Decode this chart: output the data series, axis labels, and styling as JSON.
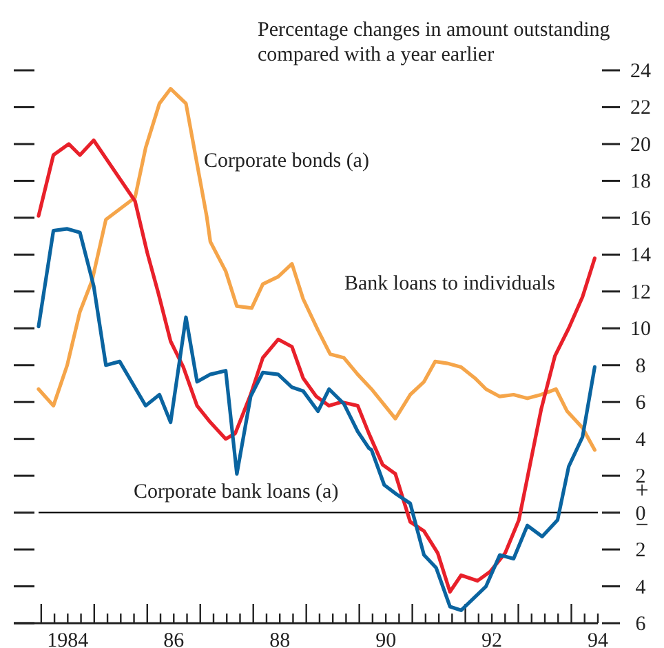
{
  "chart_data": {
    "type": "line",
    "subtitle": "Percentage changes in amount outstanding compared with a year earlier",
    "xlim": [
      1983.45,
      1994.0
    ],
    "ylim": [
      -6,
      24
    ],
    "xticks": [
      {
        "value": 1983.5,
        "label": null
      },
      {
        "value": 1983.75,
        "label": null
      },
      {
        "value": 1984,
        "label": "1984"
      },
      {
        "value": 1984.25,
        "label": null
      },
      {
        "value": 1984.5,
        "label": null
      },
      {
        "value": 1984.75,
        "label": null
      },
      {
        "value": 1985,
        "label": null
      },
      {
        "value": 1985.25,
        "label": null
      },
      {
        "value": 1985.5,
        "label": null
      },
      {
        "value": 1985.75,
        "label": null
      },
      {
        "value": 1986,
        "label": "86"
      },
      {
        "value": 1986.25,
        "label": null
      },
      {
        "value": 1986.5,
        "label": null
      },
      {
        "value": 1986.75,
        "label": null
      },
      {
        "value": 1987,
        "label": null
      },
      {
        "value": 1987.25,
        "label": null
      },
      {
        "value": 1987.5,
        "label": null
      },
      {
        "value": 1987.75,
        "label": null
      },
      {
        "value": 1988,
        "label": "88"
      },
      {
        "value": 1988.25,
        "label": null
      },
      {
        "value": 1988.5,
        "label": null
      },
      {
        "value": 1988.75,
        "label": null
      },
      {
        "value": 1989,
        "label": null
      },
      {
        "value": 1989.25,
        "label": null
      },
      {
        "value": 1989.5,
        "label": null
      },
      {
        "value": 1989.75,
        "label": null
      },
      {
        "value": 1990,
        "label": "90"
      },
      {
        "value": 1990.25,
        "label": null
      },
      {
        "value": 1990.5,
        "label": null
      },
      {
        "value": 1990.75,
        "label": null
      },
      {
        "value": 1991,
        "label": null
      },
      {
        "value": 1991.25,
        "label": null
      },
      {
        "value": 1991.5,
        "label": null
      },
      {
        "value": 1991.75,
        "label": null
      },
      {
        "value": 1992,
        "label": "92"
      },
      {
        "value": 1992.25,
        "label": null
      },
      {
        "value": 1992.5,
        "label": null
      },
      {
        "value": 1992.75,
        "label": null
      },
      {
        "value": 1993,
        "label": null
      },
      {
        "value": 1993.25,
        "label": null
      },
      {
        "value": 1993.5,
        "label": null
      },
      {
        "value": 1993.75,
        "label": null
      },
      {
        "value": 1994,
        "label": "94"
      }
    ],
    "yticks": [
      {
        "value": -6,
        "label": "6"
      },
      {
        "value": -4,
        "label": "4"
      },
      {
        "value": -2,
        "label": "2"
      },
      0,
      2,
      4,
      6,
      8,
      10,
      12,
      14,
      16,
      18,
      20,
      22,
      24
    ],
    "ref_lines": [
      {
        "axis": "y",
        "value": 0,
        "color": "#000000"
      }
    ],
    "annotations": [
      "+",
      "−"
    ],
    "grid": false,
    "series": [
      {
        "name": "Corporate bonds (a)",
        "color": "#f5a54a",
        "x": [
          1983.45,
          1983.73,
          1983.99,
          1984.23,
          1984.46,
          1984.72,
          1985.27,
          1985.47,
          1985.73,
          1985.94,
          1986.23,
          1986.62,
          1986.69,
          1986.98,
          1987.19,
          1987.47,
          1987.68,
          1987.97,
          1988.23,
          1988.44,
          1988.72,
          1988.95,
          1989.21,
          1989.47,
          1989.73,
          1990.18,
          1990.46,
          1990.72,
          1990.93,
          1991.16,
          1991.42,
          1991.68,
          1991.89,
          1992.15,
          1992.41,
          1992.67,
          1992.93,
          1993.21,
          1993.42,
          1993.71,
          1993.94
        ],
        "values": [
          6.7,
          5.8,
          8.0,
          10.9,
          12.6,
          15.9,
          17.1,
          19.8,
          22.2,
          23.0,
          22.2,
          16.1,
          14.7,
          13.1,
          11.2,
          11.1,
          12.4,
          12.8,
          13.5,
          11.6,
          9.9,
          8.6,
          8.4,
          7.5,
          6.7,
          5.1,
          6.4,
          7.1,
          8.2,
          8.1,
          7.9,
          7.3,
          6.7,
          6.3,
          6.4,
          6.2,
          6.4,
          6.7,
          5.5,
          4.6,
          3.4
        ]
      },
      {
        "name": "Bank loans to individuals",
        "color": "#e8202a",
        "x": [
          1983.45,
          1983.73,
          1984.02,
          1984.23,
          1984.49,
          1985.27,
          1985.5,
          1985.71,
          1985.94,
          1986.18,
          1986.44,
          1986.69,
          1986.98,
          1987.16,
          1987.45,
          1987.68,
          1987.97,
          1988.23,
          1988.44,
          1988.69,
          1988.93,
          1989.16,
          1989.47,
          1989.68,
          1989.94,
          1990.18,
          1990.46,
          1990.72,
          1990.98,
          1991.21,
          1991.42,
          1991.73,
          1991.97,
          1992.25,
          1992.51,
          1992.93,
          1993.19,
          1993.45,
          1993.71,
          1993.94
        ],
        "values": [
          16.1,
          19.4,
          20.0,
          19.4,
          20.2,
          16.9,
          14.1,
          11.9,
          9.3,
          7.9,
          5.8,
          4.9,
          4.0,
          4.3,
          6.4,
          8.4,
          9.4,
          9.0,
          7.3,
          6.3,
          5.8,
          6.0,
          5.8,
          4.3,
          2.6,
          2.1,
          -0.5,
          -1.0,
          -2.2,
          -4.3,
          -3.4,
          -3.7,
          -3.2,
          -2.2,
          -0.4,
          5.6,
          8.5,
          10.0,
          11.7,
          13.8
        ]
      },
      {
        "name": "Corporate bank loans (a)",
        "color": "#0a64a0",
        "x": [
          1983.45,
          1983.73,
          1983.99,
          1984.23,
          1984.49,
          1984.72,
          1984.98,
          1985.47,
          1985.73,
          1985.94,
          1986.23,
          1986.44,
          1986.69,
          1986.98,
          1987.19,
          1987.45,
          1987.68,
          1987.97,
          1988.23,
          1988.44,
          1988.72,
          1988.93,
          1989.21,
          1989.47,
          1989.68,
          1989.73,
          1989.97,
          1990.2,
          1990.46,
          1990.72,
          1990.95,
          1991.21,
          1991.42,
          1991.89,
          1992.15,
          1992.41,
          1992.67,
          1992.95,
          1993.24,
          1993.45,
          1993.71,
          1993.94
        ],
        "values": [
          10.1,
          15.3,
          15.4,
          15.2,
          12.3,
          8.0,
          8.2,
          5.8,
          6.4,
          4.9,
          10.6,
          7.1,
          7.5,
          7.7,
          2.1,
          6.3,
          7.6,
          7.5,
          6.8,
          6.6,
          5.5,
          6.7,
          5.9,
          4.4,
          3.5,
          3.4,
          1.5,
          1.0,
          0.5,
          -2.3,
          -3.0,
          -5.1,
          -5.3,
          -4.0,
          -2.3,
          -2.5,
          -0.7,
          -1.3,
          -0.4,
          2.5,
          4.1,
          7.9
        ]
      }
    ]
  }
}
